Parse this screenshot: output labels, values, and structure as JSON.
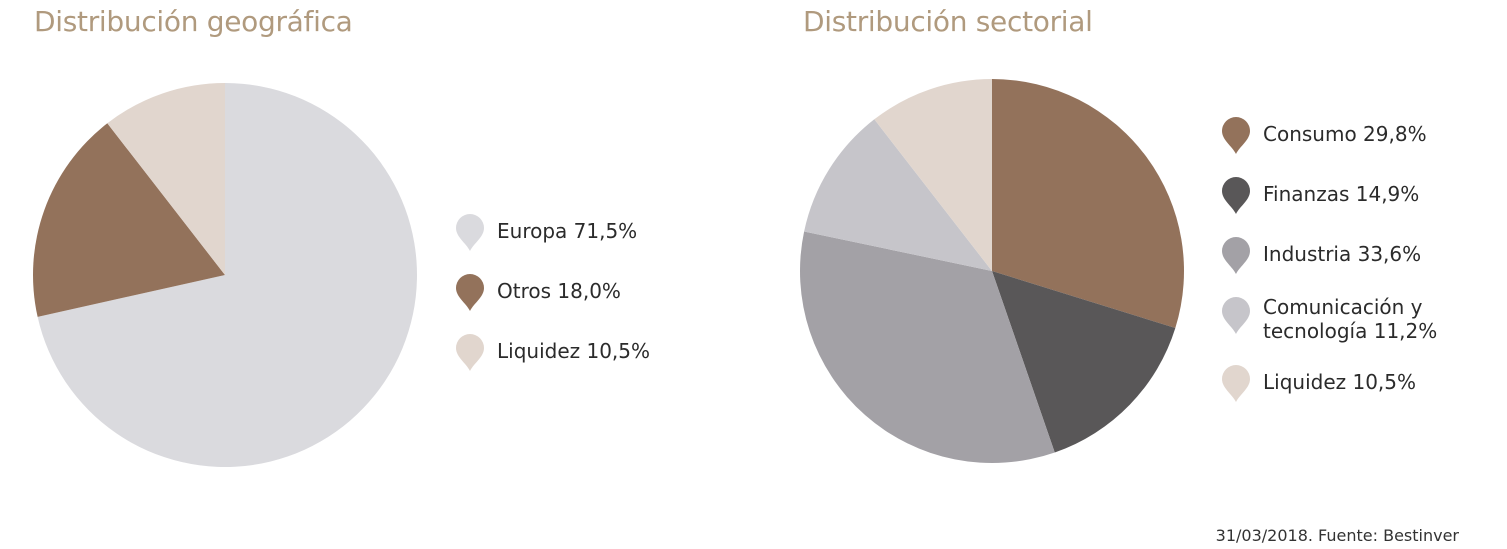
{
  "source_note": "31/03/2018. Fuente: Bestinver",
  "chart_data": [
    {
      "type": "pie",
      "title": "Distribución geográfica",
      "start_angle_deg": 0,
      "direction": "clockwise",
      "slices": [
        {
          "label": "Europa 71,5%",
          "name": "Europa",
          "value": 71.5,
          "color": "#dadade"
        },
        {
          "label": "Otros 18,0%",
          "name": "Otros",
          "value": 18.0,
          "color": "#93725b"
        },
        {
          "label": "Liquidez 10,5%",
          "name": "Liquidez",
          "value": 10.5,
          "color": "#e1d6ce"
        }
      ],
      "legend_position": "right"
    },
    {
      "type": "pie",
      "title": "Distribución sectorial",
      "start_angle_deg": 0,
      "direction": "clockwise",
      "slices": [
        {
          "label": "Consumo 29,8%",
          "name": "Consumo",
          "value": 29.8,
          "color": "#93725b"
        },
        {
          "label": "Finanzas 14,9%",
          "name": "Finanzas",
          "value": 14.9,
          "color": "#595758"
        },
        {
          "label": "Industria 33,6%",
          "name": "Industria",
          "value": 33.6,
          "color": "#a3a1a6"
        },
        {
          "label": "Comunicación y tecnología 11,2%",
          "name": "Comunicación y tecnología",
          "value": 11.2,
          "color": "#c6c5ca"
        },
        {
          "label": "Liquidez 10,5%",
          "name": "Liquidez",
          "value": 10.5,
          "color": "#e1d6ce"
        }
      ],
      "legend_position": "right"
    }
  ]
}
